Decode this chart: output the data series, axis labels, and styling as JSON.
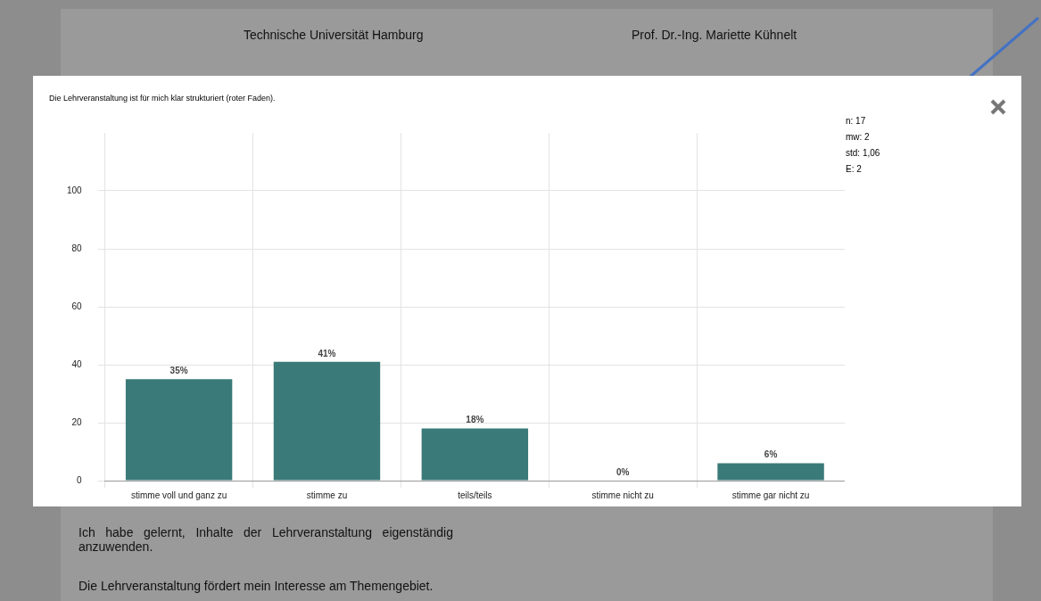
{
  "chart_data": {
    "type": "bar",
    "title": "Die Lehrveranstaltung ist für mich klar strukturiert (roter Faden).",
    "categories": [
      "stimme voll und ganz zu",
      "stimme zu",
      "teils/teils",
      "stimme nicht zu",
      "stimme gar nicht zu"
    ],
    "values": [
      35,
      41,
      18,
      0,
      6
    ],
    "value_labels": [
      "35%",
      "41%",
      "18%",
      "0%",
      "6%"
    ],
    "color": "#3a7a78",
    "ylim": [
      0,
      120
    ],
    "yticks": [
      0,
      20,
      40,
      60,
      80,
      100
    ],
    "grid": true,
    "annotations": [
      "n: 17",
      "mw: 2",
      "std: 1,06",
      "E: 2",
      "Technische Universität Hamburg",
      "Prof. Dr.-Ing. Mariette Kühnelt",
      "Ich habe gelernt, Inhalte der Lehrveranstaltung eigenständig anzuwenden.",
      "Die Lehrveranstaltung fördert mein Interesse am Themengebiet."
    ]
  }
}
